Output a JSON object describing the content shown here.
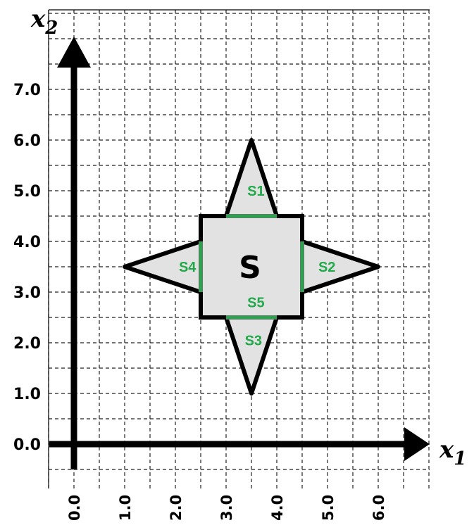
{
  "axes": {
    "x_name": "x",
    "x_sub": "1",
    "y_name": "x",
    "y_sub": "2",
    "x_ticks": [
      "0.0",
      "1.0",
      "2.0",
      "3.0",
      "4.0",
      "5.0",
      "6.0"
    ],
    "y_ticks": [
      "0.0",
      "1.0",
      "2.0",
      "3.0",
      "4.0",
      "5.0",
      "6.0",
      "7.0"
    ]
  },
  "region": {
    "label": "S",
    "square": [
      [
        2.5,
        2.5
      ],
      [
        4.5,
        2.5
      ],
      [
        4.5,
        4.5
      ],
      [
        2.5,
        4.5
      ]
    ],
    "fill": "#e2e2e2",
    "outline": "#000000",
    "triangles": [
      {
        "name": "top",
        "points": [
          [
            3.0,
            4.5
          ],
          [
            3.5,
            6.0
          ],
          [
            4.0,
            4.5
          ]
        ]
      },
      {
        "name": "right",
        "points": [
          [
            4.5,
            4.0
          ],
          [
            6.0,
            3.5
          ],
          [
            4.5,
            3.0
          ]
        ]
      },
      {
        "name": "bottom",
        "points": [
          [
            3.0,
            2.5
          ],
          [
            3.5,
            1.0
          ],
          [
            4.0,
            2.5
          ]
        ]
      },
      {
        "name": "left",
        "points": [
          [
            2.5,
            4.0
          ],
          [
            1.0,
            3.5
          ],
          [
            2.5,
            3.0
          ]
        ]
      }
    ]
  },
  "segments": {
    "color": "#22a84a",
    "items": [
      {
        "label": "S1",
        "from": [
          3.0,
          4.5
        ],
        "to": [
          4.0,
          4.5
        ],
        "label_at": [
          3.45,
          5.0
        ]
      },
      {
        "label": "S2",
        "from": [
          4.5,
          4.0
        ],
        "to": [
          4.5,
          3.0
        ],
        "label_at": [
          4.85,
          3.5
        ]
      },
      {
        "label": "S3",
        "from": [
          3.0,
          2.5
        ],
        "to": [
          4.0,
          2.5
        ],
        "label_at": [
          3.4,
          2.05
        ]
      },
      {
        "label": "S4",
        "from": [
          2.5,
          4.0
        ],
        "to": [
          2.5,
          3.0
        ],
        "label_at": [
          2.1,
          3.5
        ]
      },
      {
        "label": "S5",
        "from": [
          3.0,
          2.5
        ],
        "to": [
          4.0,
          2.5
        ],
        "label_at": [
          3.45,
          2.8
        ]
      }
    ]
  }
}
